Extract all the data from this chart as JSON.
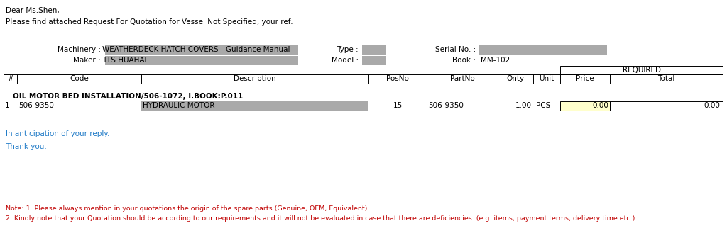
{
  "bg_color": "#ffffff",
  "text_color_blue": "#1F7AC7",
  "text_color_black": "#000000",
  "text_color_red": "#C00000",
  "gray_fill": "#A9A9A9",
  "light_yellow": "#FFFFCC",
  "greeting": "Dear Ms.Shen,",
  "intro": "Please find attached Request For Quotation for Vessel Not Specified, your ref:",
  "machinery_label": "Machinery :",
  "machinery_value": "WEATHERDECK HATCH COVERS - Guidance Manual",
  "maker_label": "Maker :",
  "maker_value": "TTS HUAHAI",
  "type_label": "Type :",
  "model_label": "Model :",
  "serial_label": "Serial No. :",
  "book_label": "Book :",
  "book_value": "MM-102",
  "required_label": "REQUIRED",
  "col_headers": [
    "#",
    "Code",
    "Description",
    "PosNo",
    "PartNo",
    "Qnty",
    "Unit",
    "Price",
    "Total"
  ],
  "item_group": "OIL MOTOR BED INSTALLATION/506-1072, I.BOOK:P.011",
  "item_no": "1",
  "item_code": "506-9350",
  "item_desc": "HYDRAULIC MOTOR",
  "item_posno": "15",
  "item_partno": "506-9350",
  "item_qnty": "1.00",
  "item_unit": "PCS",
  "item_price": "0.00",
  "item_total": "0.00",
  "anticipation": "In anticipation of your reply.",
  "thankyou": "Thank you.",
  "note1": "Note: 1. Please always mention in your quotations the origin of the spare parts (Genuine, OEM, Equivalent)",
  "note2": "2. Kindly note that your Quotation should be according to our requirements and it will not be evaluated in case that there are deficiencies. (e.g. items, payment terms, delivery time etc.)"
}
